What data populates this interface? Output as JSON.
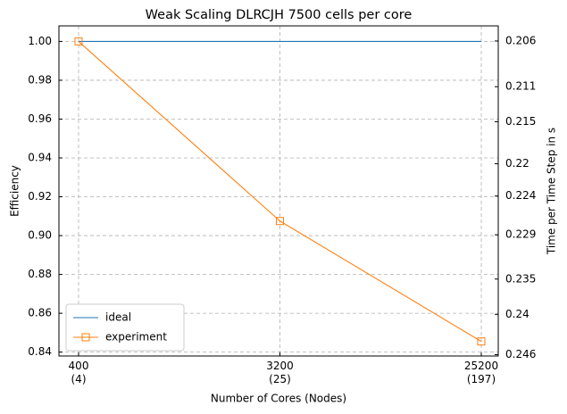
{
  "chart_data": {
    "type": "line",
    "title": "Weak Scaling DLRCJH 7500 cells per core",
    "x_label": "Number of Cores (Nodes)",
    "y_label": "Efficiency",
    "y2_label": "Time per Time Step in s",
    "categories": [
      "400\n(4)",
      "3200\n(25)",
      "25200\n(197)"
    ],
    "series": [
      {
        "name": "ideal",
        "color": "#1f77b4",
        "marker": "none",
        "values": [
          1.0,
          1.0,
          1.0
        ]
      },
      {
        "name": "experiment",
        "color": "#ff7f0e",
        "marker": "square",
        "values": [
          1.0,
          0.9075,
          0.8455
        ]
      }
    ],
    "ylim": [
      0.838,
      1.008
    ],
    "yticks": [
      {
        "value": 0.84,
        "label": "0.84"
      },
      {
        "value": 0.86,
        "label": "0.86"
      },
      {
        "value": 0.88,
        "label": "0.88"
      },
      {
        "value": 0.9,
        "label": "0.90"
      },
      {
        "value": 0.92,
        "label": "0.92"
      },
      {
        "value": 0.94,
        "label": "0.94"
      },
      {
        "value": 0.96,
        "label": "0.96"
      },
      {
        "value": 0.98,
        "label": "0.98"
      },
      {
        "value": 1.0,
        "label": "1.00"
      }
    ],
    "y2scale": "reciprocal",
    "y2lim": [
      0.2044,
      0.2462
    ],
    "y2ticks": [
      0.206,
      0.211,
      0.215,
      0.22,
      0.224,
      0.229,
      0.235,
      0.24,
      0.246
    ],
    "grid": true,
    "legend": "lower left"
  }
}
